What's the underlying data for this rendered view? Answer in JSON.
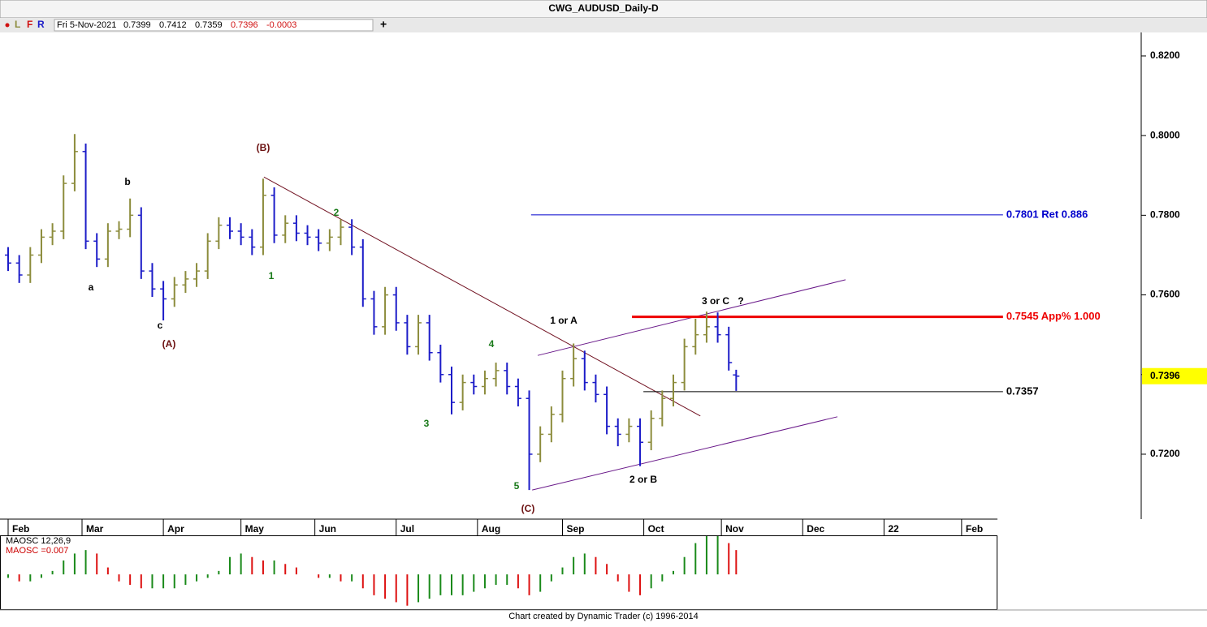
{
  "chart_data": {
    "type": "ohlc",
    "title": "CWG_AUDUSD_Daily-D",
    "toolbar": [
      "L",
      "F",
      "R"
    ],
    "info_date": "Fri 5-Nov-2021",
    "change": -0.0003,
    "footer": "Chart created by Dynamic Trader  (c) 1996-2014",
    "up_color": "#8c8c3c",
    "down_color": "#1c1cc8",
    "last_price_color": "#ffff00",
    "xlim": [
      -2.2,
      306.6
    ],
    "ylim": [
      0.7037,
      0.8259
    ],
    "xticks": [
      {
        "value": 0,
        "label": "Feb"
      },
      {
        "value": 20,
        "label": "Mar"
      },
      {
        "value": 42,
        "label": "Apr"
      },
      {
        "value": 63,
        "label": "May"
      },
      {
        "value": 83,
        "label": "Jun"
      },
      {
        "value": 105,
        "label": "Jul"
      },
      {
        "value": 127,
        "label": "Aug"
      },
      {
        "value": 150,
        "label": "Sep"
      },
      {
        "value": 172,
        "label": "Oct"
      },
      {
        "value": 193,
        "label": "Nov"
      },
      {
        "value": 215,
        "label": "Dec"
      },
      {
        "value": 237,
        "label": "22"
      },
      {
        "value": 258,
        "label": "Feb"
      }
    ],
    "yticks": [
      {
        "value": 0.72,
        "label": "0.7200"
      },
      {
        "value": 0.74,
        "label": "0.7400"
      },
      {
        "value": 0.76,
        "label": "0.7600"
      },
      {
        "value": 0.78,
        "label": "0.7800"
      },
      {
        "value": 0.8,
        "label": "0.8000"
      },
      {
        "value": 0.82,
        "label": "0.8200"
      }
    ],
    "x": [
      0,
      3,
      6,
      9,
      12,
      15,
      18,
      21,
      24,
      27,
      30,
      33,
      36,
      39,
      42,
      45,
      48,
      51,
      54,
      57,
      60,
      63,
      66,
      69,
      72,
      75,
      78,
      81,
      84,
      87,
      90,
      93,
      96,
      99,
      102,
      105,
      108,
      111,
      114,
      117,
      120,
      123,
      126,
      129,
      132,
      135,
      138,
      141,
      144,
      147,
      150,
      153,
      156,
      159,
      162,
      165,
      168,
      171,
      174,
      177,
      180,
      183,
      186,
      189,
      192,
      195,
      197
    ],
    "open": [
      0.77,
      0.768,
      0.765,
      0.77,
      0.7745,
      0.776,
      0.788,
      0.796,
      0.7735,
      0.769,
      0.776,
      0.7765,
      0.78,
      0.766,
      0.7615,
      0.759,
      0.7625,
      0.764,
      0.766,
      0.7735,
      0.7775,
      0.776,
      0.7745,
      0.772,
      0.785,
      0.775,
      0.778,
      0.7755,
      0.7745,
      0.773,
      0.7745,
      0.777,
      0.772,
      0.759,
      0.752,
      0.76,
      0.753,
      0.747,
      0.753,
      0.7455,
      0.74,
      0.733,
      0.738,
      0.737,
      0.739,
      0.741,
      0.737,
      0.734,
      0.72,
      0.725,
      0.73,
      0.739,
      0.744,
      0.738,
      0.735,
      0.727,
      0.725,
      0.727,
      0.723,
      0.729,
      0.734,
      0.738,
      0.747,
      0.75,
      0.752,
      0.75,
      0.7399
    ],
    "high": [
      0.772,
      0.77,
      0.772,
      0.7765,
      0.778,
      0.79,
      0.8004,
      0.798,
      0.7755,
      0.778,
      0.7785,
      0.7842,
      0.782,
      0.768,
      0.7635,
      0.7645,
      0.766,
      0.768,
      0.7755,
      0.7795,
      0.7795,
      0.778,
      0.7765,
      0.7892,
      0.787,
      0.78,
      0.78,
      0.7775,
      0.7765,
      0.7765,
      0.779,
      0.779,
      0.774,
      0.761,
      0.762,
      0.762,
      0.755,
      0.755,
      0.755,
      0.7475,
      0.742,
      0.74,
      0.74,
      0.741,
      0.743,
      0.743,
      0.739,
      0.736,
      0.727,
      0.732,
      0.741,
      0.7478,
      0.746,
      0.74,
      0.737,
      0.729,
      0.729,
      0.729,
      0.731,
      0.736,
      0.74,
      0.749,
      0.754,
      0.7558,
      0.7556,
      0.752,
      0.7412
    ],
    "low": [
      0.766,
      0.763,
      0.763,
      0.768,
      0.7725,
      0.774,
      0.786,
      0.7715,
      0.767,
      0.767,
      0.774,
      0.7745,
      0.764,
      0.7595,
      0.7536,
      0.757,
      0.7605,
      0.762,
      0.764,
      0.7715,
      0.774,
      0.7725,
      0.77,
      0.77,
      0.773,
      0.773,
      0.7735,
      0.7725,
      0.771,
      0.771,
      0.7725,
      0.77,
      0.757,
      0.75,
      0.75,
      0.751,
      0.745,
      0.745,
      0.7435,
      0.738,
      0.73,
      0.731,
      0.735,
      0.735,
      0.737,
      0.735,
      0.732,
      0.711,
      0.718,
      0.723,
      0.728,
      0.737,
      0.736,
      0.733,
      0.725,
      0.722,
      0.723,
      0.717,
      0.721,
      0.727,
      0.732,
      0.736,
      0.745,
      0.748,
      0.748,
      0.741,
      0.7359
    ],
    "close": [
      0.768,
      0.765,
      0.77,
      0.7745,
      0.776,
      0.788,
      0.796,
      0.7735,
      0.769,
      0.776,
      0.7765,
      0.78,
      0.766,
      0.7615,
      0.759,
      0.7625,
      0.764,
      0.766,
      0.7735,
      0.7775,
      0.776,
      0.7745,
      0.772,
      0.785,
      0.775,
      0.778,
      0.7755,
      0.7745,
      0.773,
      0.7745,
      0.777,
      0.772,
      0.759,
      0.752,
      0.76,
      0.753,
      0.747,
      0.753,
      0.7455,
      0.74,
      0.733,
      0.738,
      0.737,
      0.739,
      0.741,
      0.737,
      0.734,
      0.72,
      0.725,
      0.73,
      0.739,
      0.744,
      0.738,
      0.735,
      0.727,
      0.725,
      0.727,
      0.723,
      0.729,
      0.734,
      0.738,
      0.747,
      0.75,
      0.752,
      0.75,
      0.743,
      0.7396
    ],
    "lines": [
      {
        "x": [
          69.2,
          187.3
        ],
        "y": [
          0.7896,
          0.7296
        ],
        "color": "#701020"
      },
      {
        "x": [
          143.3,
          226.6
        ],
        "y": [
          0.7448,
          0.7638
        ],
        "color": "#6a1a8a"
      },
      {
        "x": [
          141.8,
          224.4
        ],
        "y": [
          0.711,
          0.7294
        ],
        "color": "#6a1a8a"
      },
      {
        "x": [
          141.5,
          269.2
        ],
        "y": [
          0.7801,
          0.7801
        ],
        "color": "#0000cc",
        "label": "0.7801 Ret 0.886"
      },
      {
        "x": [
          168.8,
          269.2
        ],
        "y": [
          0.7545,
          0.7545
        ],
        "color": "#ee0000",
        "label": "0.7545 App% 1.000"
      },
      {
        "x": [
          171.9,
          269.2
        ],
        "y": [
          0.7357,
          0.7357
        ],
        "color": "#000000"
      }
    ],
    "annotations": [
      {
        "text": "(B)",
        "color": "#6b1010"
      },
      {
        "text": "b",
        "color": "#000000"
      },
      {
        "text": "a",
        "color": "#000000"
      },
      {
        "text": "c",
        "color": "#000000"
      },
      {
        "text": "(A)",
        "color": "#6b1010"
      },
      {
        "text": "1",
        "color": "#1a7a1a"
      },
      {
        "text": "2",
        "color": "#1a7a1a"
      },
      {
        "text": "3",
        "color": "#1a7a1a"
      },
      {
        "text": "4",
        "color": "#1a7a1a"
      },
      {
        "text": "5",
        "color": "#1a7a1a"
      },
      {
        "text": "(C)",
        "color": "#6b1010"
      },
      {
        "text": "1 or A",
        "color": "#000000"
      },
      {
        "text": "2 or B",
        "color": "#000000"
      },
      {
        "text": "3 or C",
        "color": "#000000"
      },
      {
        "text": "?",
        "color": "#000000"
      }
    ],
    "oscillator": {
      "name": "MAOSC 12,26,9",
      "label": "MAOSC =0.007",
      "rise_color": "#1a8a1a",
      "fall_color": "#dd1010",
      "ylim": [
        -0.01,
        0.011
      ],
      "values": [
        -0.001,
        -0.002,
        -0.002,
        -0.001,
        0.001,
        0.004,
        0.006,
        0.007,
        0.006,
        0.002,
        -0.002,
        -0.003,
        -0.004,
        -0.004,
        -0.004,
        -0.004,
        -0.003,
        -0.002,
        -0.001,
        0.001,
        0.005,
        0.006,
        0.005,
        0.004,
        0.004,
        0.003,
        0.002,
        0.0,
        -0.001,
        -0.001,
        -0.002,
        -0.002,
        -0.004,
        -0.006,
        -0.007,
        -0.008,
        -0.009,
        -0.008,
        -0.007,
        -0.006,
        -0.006,
        -0.006,
        -0.005,
        -0.004,
        -0.003,
        -0.003,
        -0.004,
        -0.006,
        -0.005,
        -0.002,
        0.002,
        0.005,
        0.006,
        0.005,
        0.003,
        -0.002,
        -0.005,
        -0.006,
        -0.004,
        -0.002,
        0.001,
        0.005,
        0.009,
        0.011,
        0.011,
        0.009,
        0.007
      ]
    }
  }
}
